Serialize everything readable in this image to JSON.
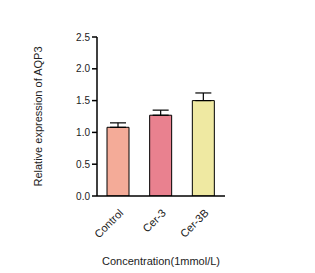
{
  "chart_data": {
    "type": "bar",
    "categories": [
      "Control",
      "Cer-3",
      "Cer-3B"
    ],
    "values": [
      1.08,
      1.27,
      1.5
    ],
    "errors": [
      0.07,
      0.08,
      0.12
    ],
    "colors": [
      "#f4ab98",
      "#e9818f",
      "#efe9a2"
    ],
    "ylim": [
      0,
      2.5
    ],
    "yticks": [
      {
        "value": 0,
        "label": "0.0"
      },
      0.5,
      {
        "value": 1,
        "label": "1.0"
      },
      1.5,
      {
        "value": 2,
        "label": "2.0"
      },
      2.5
    ],
    "y_label": "Relative expression of AQP3",
    "x_label": "Concentration(1mmol/L)",
    "grid": false
  }
}
